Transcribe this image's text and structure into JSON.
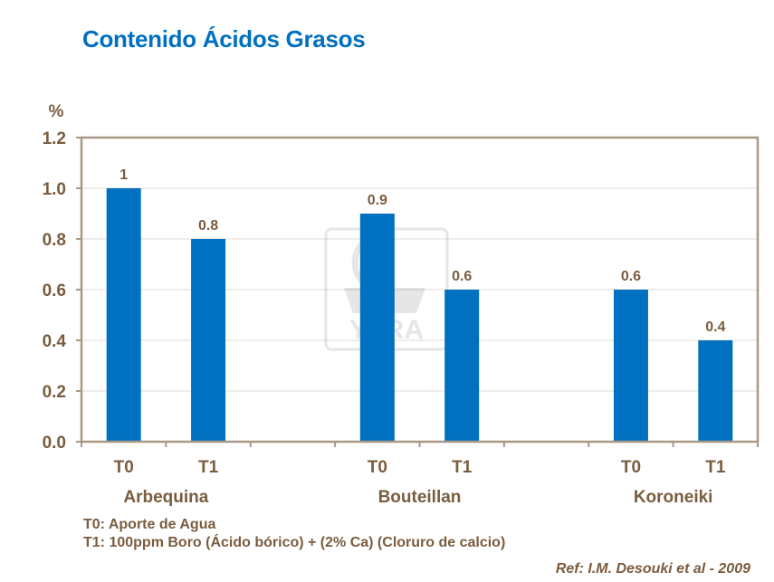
{
  "title": "Contenido Ácidos Grasos",
  "chart_data": {
    "type": "bar",
    "title": "Contenido Ácidos Grasos",
    "ylabel": "%",
    "ylim": [
      0,
      1.2
    ],
    "yticks": [
      "0.0",
      "0.2",
      "0.4",
      "0.6",
      "0.8",
      "1.0",
      "1.2"
    ],
    "grid": true,
    "groups": [
      {
        "name": "Arbequina",
        "categories": [
          "T0",
          "T1"
        ],
        "values": [
          1,
          0.8
        ],
        "labels": [
          "1",
          "0.8"
        ]
      },
      {
        "name": "Bouteillan",
        "categories": [
          "T0",
          "T1"
        ],
        "values": [
          0.9,
          0.6
        ],
        "labels": [
          "0.9",
          "0.6"
        ]
      },
      {
        "name": "Koroneiki",
        "categories": [
          "T0",
          "T1"
        ],
        "values": [
          0.6,
          0.4
        ],
        "labels": [
          "0.6",
          "0.4"
        ]
      }
    ],
    "bar_color": "#0070C0",
    "axis_color": "#A89886",
    "text_color": "#7A5C3E"
  },
  "watermark": "YARA",
  "notes": [
    "T0: Aporte de Agua",
    "T1: 100ppm Boro (Ácido bórico) + (2% Ca) (Cloruro de calcio)"
  ],
  "reference": "Ref: I.M. Desouki et al - 2009"
}
